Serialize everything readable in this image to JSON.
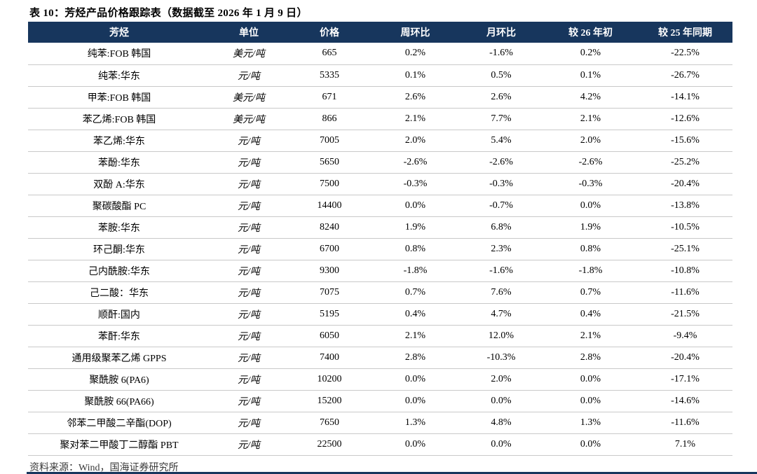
{
  "title": "表 10：芳烃产品价格跟踪表（数据截至 2026 年 1 月 9 日）",
  "footer": {
    "source": "资料来源：Wind，国海证券研究所"
  },
  "colors": {
    "header_bg": "#17365D",
    "header_text": "#FFFFFF",
    "row_border": "#C9C9C9",
    "bottom_rule": "#17365D"
  },
  "table": {
    "headers": [
      "芳烃",
      "单位",
      "价格",
      "周环比",
      "月环比",
      "较 26 年初",
      "较 25 年同期"
    ],
    "rows": [
      [
        "纯苯:FOB 韩国",
        "美元/吨",
        "665",
        "0.2%",
        "-1.6%",
        "0.2%",
        "-22.5%"
      ],
      [
        "纯苯:华东",
        "元/吨",
        "5335",
        "0.1%",
        "0.5%",
        "0.1%",
        "-26.7%"
      ],
      [
        "甲苯:FOB 韩国",
        "美元/吨",
        "671",
        "2.6%",
        "2.6%",
        "4.2%",
        "-14.1%"
      ],
      [
        "苯乙烯:FOB 韩国",
        "美元/吨",
        "866",
        "2.1%",
        "7.7%",
        "2.1%",
        "-12.6%"
      ],
      [
        "苯乙烯:华东",
        "元/吨",
        "7005",
        "2.0%",
        "5.4%",
        "2.0%",
        "-15.6%"
      ],
      [
        "苯酚:华东",
        "元/吨",
        "5650",
        "-2.6%",
        "-2.6%",
        "-2.6%",
        "-25.2%"
      ],
      [
        "双酚 A:华东",
        "元/吨",
        "7500",
        "-0.3%",
        "-0.3%",
        "-0.3%",
        "-20.4%"
      ],
      [
        "聚碳酸酯 PC",
        "元/吨",
        "14400",
        "0.0%",
        "-0.7%",
        "0.0%",
        "-13.8%"
      ],
      [
        "苯胺:华东",
        "元/吨",
        "8240",
        "1.9%",
        "6.8%",
        "1.9%",
        "-10.5%"
      ],
      [
        "环己酮:华东",
        "元/吨",
        "6700",
        "0.8%",
        "2.3%",
        "0.8%",
        "-25.1%"
      ],
      [
        "己内酰胺:华东",
        "元/吨",
        "9300",
        "-1.8%",
        "-1.6%",
        "-1.8%",
        "-10.8%"
      ],
      [
        "己二酸：华东",
        "元/吨",
        "7075",
        "0.7%",
        "7.6%",
        "0.7%",
        "-11.6%"
      ],
      [
        "顺酐:国内",
        "元/吨",
        "5195",
        "0.4%",
        "4.7%",
        "0.4%",
        "-21.5%"
      ],
      [
        "苯酐:华东",
        "元/吨",
        "6050",
        "2.1%",
        "12.0%",
        "2.1%",
        "-9.4%"
      ],
      [
        "通用级聚苯乙烯 GPPS",
        "元/吨",
        "7400",
        "2.8%",
        "-10.3%",
        "2.8%",
        "-20.4%"
      ],
      [
        "聚酰胺 6(PA6)",
        "元/吨",
        "10200",
        "0.0%",
        "2.0%",
        "0.0%",
        "-17.1%"
      ],
      [
        "聚酰胺 66(PA66)",
        "元/吨",
        "15200",
        "0.0%",
        "0.0%",
        "0.0%",
        "-14.6%"
      ],
      [
        "邻苯二甲酸二辛酯(DOP)",
        "元/吨",
        "7650",
        "1.3%",
        "4.8%",
        "1.3%",
        "-11.6%"
      ],
      [
        "聚对苯二甲酸丁二醇酯 PBT",
        "元/吨",
        "22500",
        "0.0%",
        "0.0%",
        "0.0%",
        "7.1%"
      ]
    ]
  }
}
